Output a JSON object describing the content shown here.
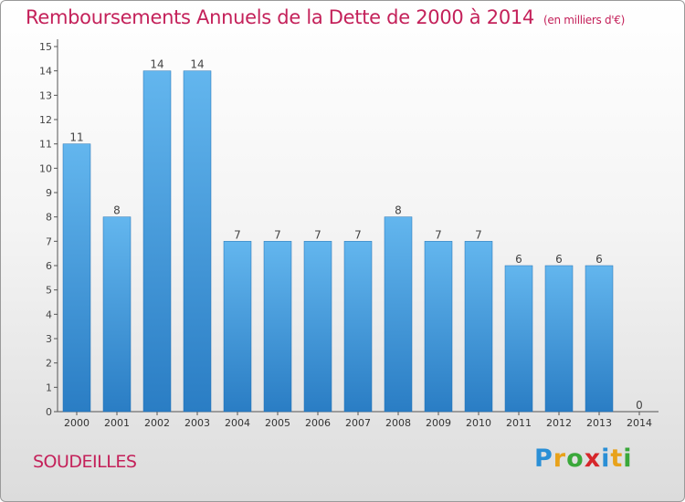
{
  "header": {
    "title": "Remboursements Annuels de la Dette de 2000 à 2014",
    "unit": "(en milliers d'€)"
  },
  "commune": "SOUDEILLES",
  "logo": {
    "letters": [
      "P",
      "r",
      "o",
      "x",
      "i",
      "t",
      "i"
    ],
    "colors": [
      "#2a8fd6",
      "#e8a21b",
      "#3aa83a",
      "#d6262b",
      "#2a8fd6",
      "#e8a21b",
      "#3aa83a"
    ]
  },
  "colors": {
    "bar_top": "#63b6ee",
    "bar_bottom": "#2a7dc4",
    "title": "#c4215a"
  },
  "chart_data": {
    "type": "bar",
    "categories": [
      "2000",
      "2001",
      "2002",
      "2003",
      "2004",
      "2005",
      "2006",
      "2007",
      "2008",
      "2009",
      "2010",
      "2011",
      "2012",
      "2013",
      "2014"
    ],
    "values": [
      11,
      8,
      14,
      14,
      7,
      7,
      7,
      7,
      8,
      7,
      7,
      6,
      6,
      6,
      0
    ],
    "data_labels": [
      "11",
      "8",
      "14",
      "14",
      "7",
      "7",
      "7",
      "7",
      "8",
      "7",
      "7",
      "6",
      "6",
      "6",
      "0"
    ],
    "yticks": [
      "0",
      "1",
      "2",
      "3",
      "4",
      "5",
      "6",
      "7",
      "8",
      "9",
      "10",
      "11",
      "12",
      "13",
      "14",
      "15"
    ],
    "ylim": [
      0,
      15
    ],
    "grid": false,
    "legend": "none"
  }
}
